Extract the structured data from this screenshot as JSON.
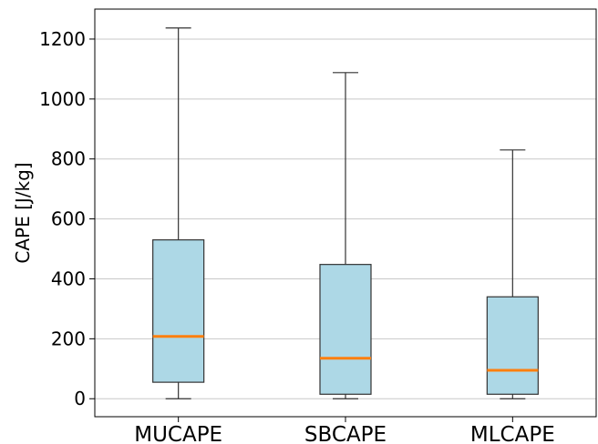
{
  "chart_data": {
    "type": "box",
    "ylabel": "CAPE [J/kg]",
    "xlabel": "",
    "ylim": [
      -60,
      1300
    ],
    "yticks": [
      0,
      200,
      400,
      600,
      800,
      1000,
      1200
    ],
    "grid": "horizontal",
    "categories": [
      "MUCAPE",
      "SBCAPE",
      "MLCAPE"
    ],
    "boxes": [
      {
        "category": "MUCAPE",
        "whisker_low": 0,
        "q1": 55,
        "median": 208,
        "q3": 530,
        "whisker_high": 1237
      },
      {
        "category": "SBCAPE",
        "whisker_low": 0,
        "q1": 15,
        "median": 135,
        "q3": 448,
        "whisker_high": 1088
      },
      {
        "category": "MLCAPE",
        "whisker_low": 0,
        "q1": 15,
        "median": 95,
        "q3": 340,
        "whisker_high": 830
      }
    ],
    "colors": {
      "box_fill": "#add8e6",
      "box_edge": "#333333",
      "median": "#ff7f0e",
      "grid": "#c8c8c8"
    }
  }
}
